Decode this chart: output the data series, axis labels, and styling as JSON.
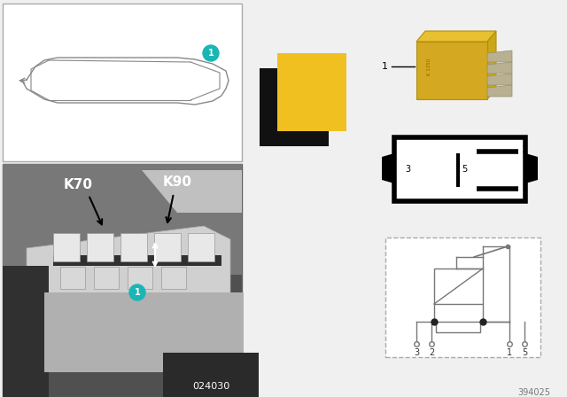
{
  "bg_color": "#f0f0f0",
  "teal_color": "#1ab5b5",
  "yellow_color": "#f0c020",
  "black_color": "#111111",
  "label_K70": "K70",
  "label_K90": "K90",
  "code_photo": "024030",
  "code_bottom": "394025",
  "car_line_color": "#888888",
  "pin_labels": [
    "3",
    "2",
    "1",
    "5"
  ],
  "diagram_line_color": "#777777",
  "relay_body_color": "#d4a820",
  "relay_pin_color": "#b8b090"
}
